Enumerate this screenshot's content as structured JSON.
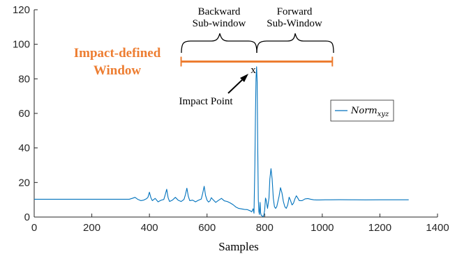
{
  "chart_data": {
    "type": "line",
    "xlabel": "Samples",
    "ylabel": "",
    "xlim": [
      0,
      1400
    ],
    "ylim": [
      0,
      120
    ],
    "xticks": [
      "0",
      "200",
      "400",
      "600",
      "800",
      "1000",
      "1200",
      "1400"
    ],
    "yticks": [
      "0",
      "20",
      "40",
      "60",
      "80",
      "100",
      "120"
    ],
    "grid": false,
    "legend": {
      "placement": "right",
      "entries": [
        {
          "base": "Norm",
          "sub": "xyz"
        }
      ]
    },
    "series": [
      {
        "name": "Norm_xyz",
        "color": "#0072BD",
        "x": [
          0,
          150,
          300,
          330,
          340,
          350,
          360,
          370,
          380,
          390,
          395,
          400,
          405,
          410,
          420,
          430,
          440,
          450,
          455,
          460,
          465,
          470,
          480,
          490,
          500,
          510,
          520,
          525,
          530,
          535,
          540,
          550,
          560,
          570,
          580,
          585,
          590,
          595,
          600,
          605,
          610,
          615,
          620,
          630,
          640,
          650,
          660,
          670,
          680,
          690,
          700,
          710,
          720,
          730,
          740,
          750,
          755,
          760,
          763,
          766,
          768,
          770,
          772,
          774,
          776,
          778,
          780,
          782,
          784,
          786,
          788,
          790,
          792,
          795,
          797,
          800,
          803,
          805,
          810,
          815,
          818,
          822,
          826,
          830,
          834,
          838,
          842,
          846,
          850,
          855,
          860,
          865,
          870,
          875,
          880,
          885,
          890,
          895,
          900,
          905,
          910,
          915,
          920,
          930,
          940,
          950,
          960,
          970,
          980,
          990,
          1000,
          1010,
          1030,
          1060,
          1100,
          1150,
          1200,
          1250,
          1300
        ],
        "y": [
          10.3,
          10.3,
          10.3,
          10.3,
          10.8,
          11.4,
          10.2,
          9.5,
          9.8,
          10.6,
          11.5,
          14.4,
          11.2,
          9.5,
          10.8,
          8.8,
          9.7,
          10.2,
          13.0,
          16.1,
          11.1,
          9.0,
          9.8,
          11.4,
          9.7,
          9.0,
          10.2,
          13.0,
          16.7,
          12.0,
          9.5,
          9.8,
          8.8,
          9.7,
          10.4,
          13.8,
          17.8,
          12.4,
          9.8,
          8.7,
          9.3,
          11.2,
          10.2,
          8.5,
          9.7,
          10.8,
          9.4,
          9.0,
          8.2,
          7.2,
          5.8,
          5.0,
          4.7,
          4.4,
          4.3,
          3.6,
          3.0,
          4.8,
          2.2,
          30.0,
          58.0,
          80.0,
          87.0,
          78.0,
          40.0,
          10.0,
          3.0,
          1.5,
          8.5,
          2.5,
          1.0,
          0.8,
          0.5,
          0.3,
          1.0,
          4.0,
          11.0,
          10.0,
          5.0,
          11.0,
          22.0,
          28.0,
          22.0,
          11.0,
          6.0,
          5.0,
          6.0,
          9.0,
          12.0,
          17.0,
          14.0,
          9.0,
          6.0,
          5.0,
          7.0,
          11.5,
          9.5,
          7.0,
          8.0,
          10.5,
          12.3,
          11.0,
          9.5,
          9.5,
          10.5,
          10.7,
          10.3,
          10.0,
          9.9,
          9.9,
          9.95,
          10.0,
          10.0,
          10.05,
          10.0,
          9.95,
          10.0,
          10.0,
          10.0
        ]
      }
    ],
    "annotations": {
      "window_label_line1": "Impact-defined",
      "window_label_line2": "Window",
      "window_color": "#ED7D31",
      "window_x": [
        510,
        1035
      ],
      "window_y": 90,
      "impact_x": 775,
      "impact_y": 85,
      "impact_marker": "x",
      "impact_label": "Impact Point",
      "backward_label_line1": "Backward",
      "backward_label_line2": "Sub-window",
      "forward_label_line1": "Forward",
      "forward_label_line2": "Sub-Window"
    }
  }
}
